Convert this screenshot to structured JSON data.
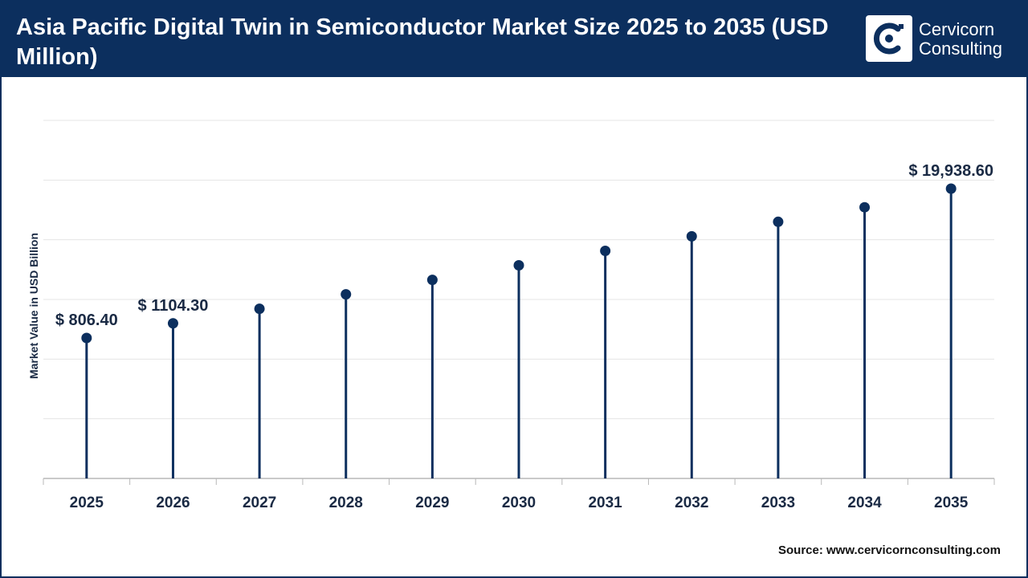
{
  "header": {
    "title": "Asia Pacific Digital Twin in Semiconductor Market Size 2025 to 2035 (USD Million)",
    "logo_line1": "Cervicorn",
    "logo_line2": "Consulting"
  },
  "colors": {
    "brand": "#0c2f5e",
    "grid": "#e4e4e4",
    "text": "#1a2a44"
  },
  "chart_data": {
    "type": "lollipop",
    "title": "Asia Pacific Digital Twin in Semiconductor Market Size 2025 to 2035 (USD Million)",
    "ylabel": "Market Value in USD Billion",
    "xlabel": "",
    "categories": [
      "2025",
      "2026",
      "2027",
      "2028",
      "2029",
      "2030",
      "2031",
      "2032",
      "2033",
      "2034",
      "2035"
    ],
    "values": [
      806.4,
      1104.3,
      1510,
      2060,
      2810,
      3840,
      5240,
      7160,
      9780,
      13360,
      19938.6
    ],
    "data_labels": [
      {
        "index": 0,
        "text": "$ 806.40"
      },
      {
        "index": 1,
        "text": "$ 1104.30"
      },
      {
        "index": 10,
        "text": "$ 19,938.60"
      }
    ],
    "grid": true,
    "legend": "none"
  },
  "footer": {
    "source": "Source: www.cervicornconsulting.com"
  }
}
